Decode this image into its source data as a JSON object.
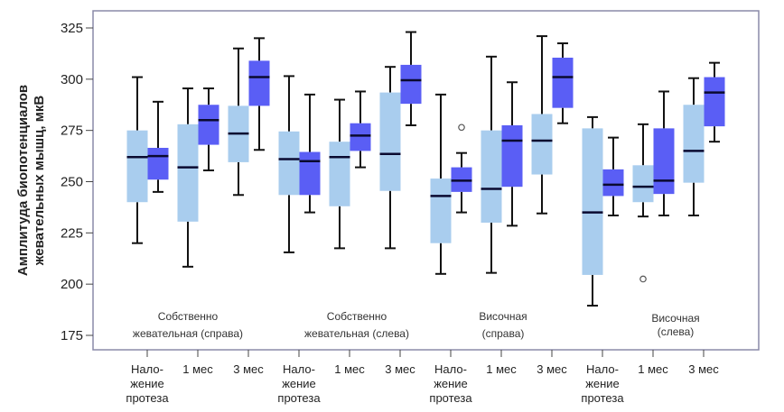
{
  "chart_data": {
    "type": "boxplot",
    "title": "",
    "ylabel": "Амплитуда биопотенциалов жевательных мышц, мкВ",
    "ylabel_lines": [
      "Амплитуда биопотенциалов",
      "жевательных мышц, мкВ"
    ],
    "xlabel": "",
    "ylim": [
      170,
      330
    ],
    "yticks": [
      175,
      200,
      225,
      250,
      275,
      300,
      325
    ],
    "grid": false,
    "colors": {
      "light": "#a9cdee",
      "dark": "#5a5ef5",
      "frame": "#8a8aa8",
      "whisker": "#111111"
    },
    "categories": [
      [
        "Нало-",
        "жение",
        "протеза"
      ],
      [
        "1 мес"
      ],
      [
        "3 мес"
      ],
      [
        "Нало-",
        "жение",
        "протеза"
      ],
      [
        "1 мес"
      ],
      [
        "3 мес"
      ],
      [
        "Нало-",
        "жение",
        "протеза"
      ],
      [
        "1 мес"
      ],
      [
        "3 мес"
      ],
      [
        "Нало-",
        "жение",
        "протеза"
      ],
      [
        "1 мес"
      ],
      [
        "3 мес"
      ]
    ],
    "groups": [
      [
        "Собственно",
        "жевательная (справа)"
      ],
      [
        "Собственно",
        "жевательная (слева)"
      ],
      [
        "Височная",
        "(справа)"
      ],
      [
        "Височная",
        "(слева)"
      ]
    ],
    "series": [
      {
        "name": "light",
        "boxes": [
          {
            "min": 220,
            "q1": 240,
            "median": 262,
            "q3": 275,
            "max": 301,
            "outliers": []
          },
          {
            "min": 208.5,
            "q1": 230.5,
            "median": 257,
            "q3": 278,
            "max": 295.5,
            "outliers": []
          },
          {
            "min": 243.5,
            "q1": 259.5,
            "median": 273.5,
            "q3": 287,
            "max": 315,
            "outliers": []
          },
          {
            "min": 215.5,
            "q1": 243.5,
            "median": 261,
            "q3": 274.5,
            "max": 301.5,
            "outliers": []
          },
          {
            "min": 217.5,
            "q1": 238,
            "median": 262,
            "q3": 269.5,
            "max": 290,
            "outliers": []
          },
          {
            "min": 217.5,
            "q1": 245.5,
            "median": 263.5,
            "q3": 293.5,
            "max": 306,
            "outliers": []
          },
          {
            "min": 205,
            "q1": 220,
            "median": 243,
            "q3": 251.5,
            "max": 292.5,
            "outliers": []
          },
          {
            "min": 205.5,
            "q1": 230,
            "median": 246.5,
            "q3": 275,
            "max": 311,
            "outliers": []
          },
          {
            "min": 234.5,
            "q1": 253.5,
            "median": 270,
            "q3": 283,
            "max": 321,
            "outliers": []
          },
          {
            "min": 189.5,
            "q1": 204.5,
            "median": 235,
            "q3": 276,
            "max": 281.5,
            "outliers": []
          },
          {
            "min": 233,
            "q1": 240,
            "median": 247.5,
            "q3": 258,
            "max": 278,
            "outliers": [
              202.5
            ]
          },
          {
            "min": 233.5,
            "q1": 249.5,
            "median": 265,
            "q3": 287.5,
            "max": 300.5,
            "outliers": []
          }
        ]
      },
      {
        "name": "dark",
        "boxes": [
          {
            "min": 245,
            "q1": 251,
            "median": 262.5,
            "q3": 266.5,
            "max": 289,
            "outliers": []
          },
          {
            "min": 255.5,
            "q1": 268,
            "median": 280,
            "q3": 287.5,
            "max": 295.5,
            "outliers": []
          },
          {
            "min": 265.5,
            "q1": 287,
            "median": 301,
            "q3": 309,
            "max": 320,
            "outliers": []
          },
          {
            "min": 235,
            "q1": 243.5,
            "median": 260,
            "q3": 264.5,
            "max": 292.5,
            "outliers": []
          },
          {
            "min": 257,
            "q1": 265,
            "median": 272.5,
            "q3": 278.5,
            "max": 294,
            "outliers": []
          },
          {
            "min": 277.5,
            "q1": 288,
            "median": 299.5,
            "q3": 307,
            "max": 323,
            "outliers": []
          },
          {
            "min": 235,
            "q1": 245,
            "median": 250.5,
            "q3": 257,
            "max": 264,
            "outliers": [
              276.5
            ]
          },
          {
            "min": 228.5,
            "q1": 247.5,
            "median": 270,
            "q3": 277.5,
            "max": 298.5,
            "outliers": []
          },
          {
            "min": 278.5,
            "q1": 286,
            "median": 301,
            "q3": 310.5,
            "max": 317.5,
            "outliers": []
          },
          {
            "min": 233.5,
            "q1": 243,
            "median": 248.5,
            "q3": 256,
            "max": 271.5,
            "outliers": []
          },
          {
            "min": 233.5,
            "q1": 244,
            "median": 250.5,
            "q3": 276,
            "max": 294,
            "outliers": []
          },
          {
            "min": 269.5,
            "q1": 277,
            "median": 293.5,
            "q3": 301,
            "max": 308,
            "outliers": []
          }
        ]
      }
    ]
  }
}
